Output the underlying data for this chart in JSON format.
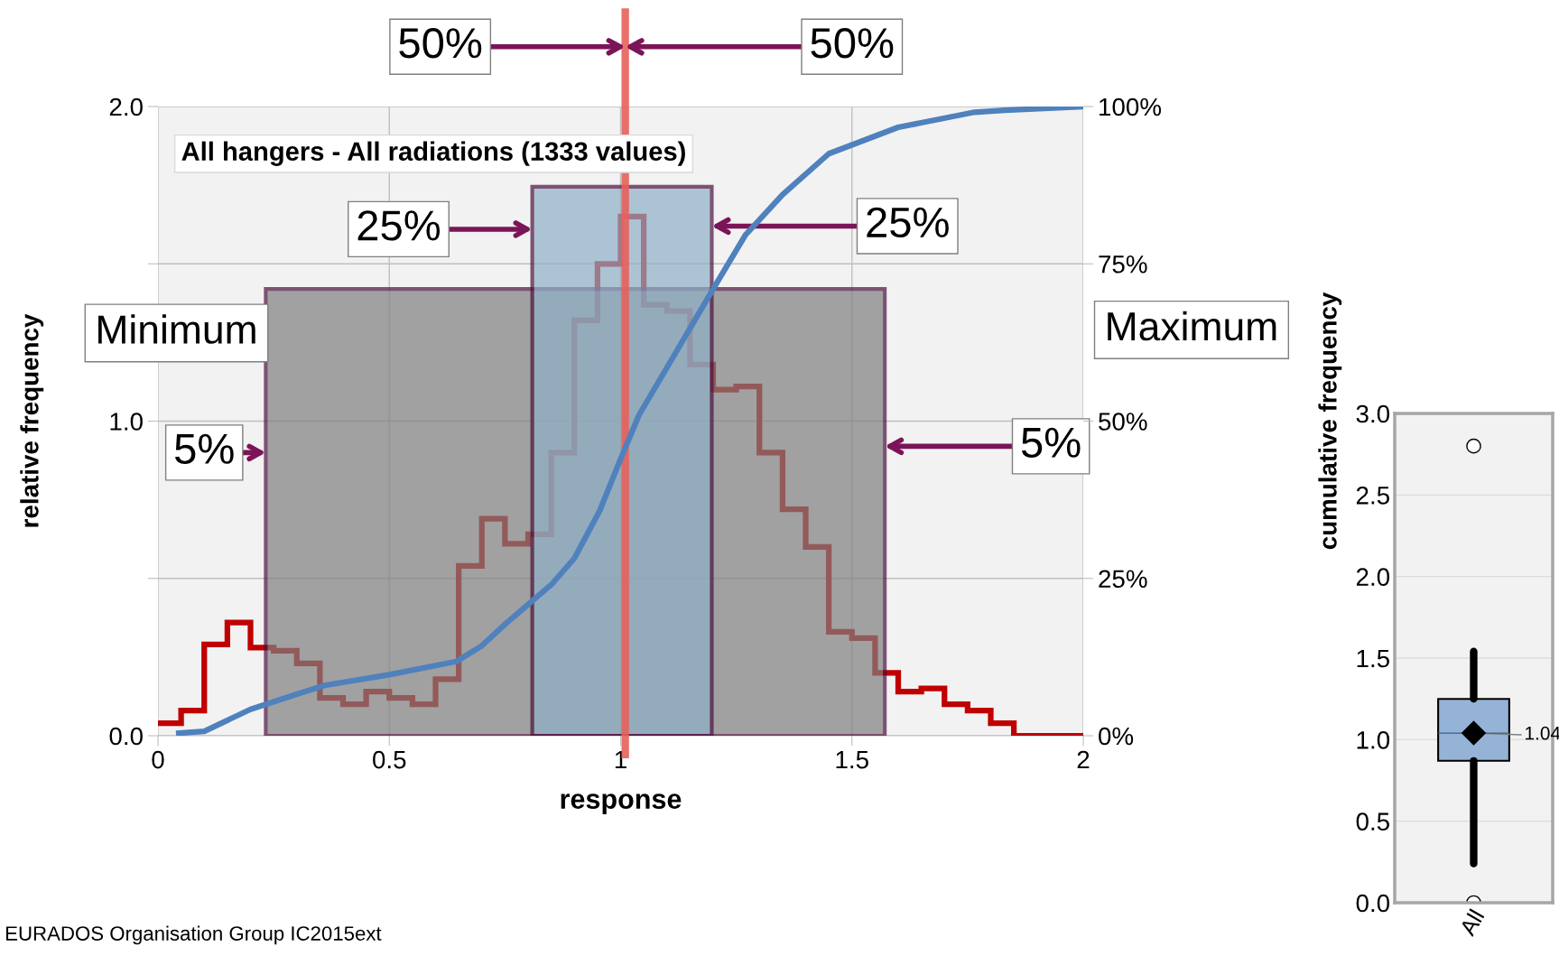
{
  "chart_data": [
    {
      "type": "histogram",
      "title": "All hangers - All radiations (1333 values)",
      "xlabel": "response",
      "ylabel": "relative frequency",
      "y2label": "cumulative frequency",
      "series": [
        {
          "type": "histogram",
          "color": "#c00000",
          "bins": [
            0,
            0.05,
            0.1,
            0.15,
            0.2,
            0.25,
            0.3,
            0.35,
            0.4,
            0.45,
            0.5,
            0.55,
            0.6,
            0.65,
            0.7,
            0.75,
            0.8,
            0.85,
            0.9,
            0.95,
            1.0,
            1.05,
            1.1,
            1.15,
            1.2,
            1.25,
            1.3,
            1.35,
            1.4,
            1.45,
            1.5,
            1.55,
            1.6,
            1.65,
            1.7,
            1.75,
            1.8,
            1.85,
            1.9,
            1.95,
            2.0
          ],
          "values": [
            0.04,
            0.08,
            0.29,
            0.36,
            0.28,
            0.27,
            0.23,
            0.12,
            0.1,
            0.14,
            0.12,
            0.1,
            0.18,
            0.54,
            0.69,
            0.61,
            0.64,
            0.9,
            1.32,
            1.5,
            1.65,
            1.37,
            1.35,
            1.18,
            1.1,
            1.11,
            0.9,
            0.72,
            0.6,
            0.33,
            0.31,
            0.2,
            0.14,
            0.15,
            0.1,
            0.08,
            0.04,
            0,
            0,
            0
          ]
        },
        {
          "type": "line",
          "axis": "y2",
          "color": "#4f81bd",
          "x": [
            0.045,
            0.1,
            0.2,
            0.3,
            0.36,
            0.5,
            0.645,
            0.7,
            0.75,
            0.85,
            0.9,
            0.955,
            1.0,
            1.04,
            1.2,
            1.27,
            1.35,
            1.45,
            1.6,
            1.765,
            1.83,
            2.0
          ],
          "values": [
            0.4,
            0.7,
            4.2,
            6.6,
            8,
            9.7,
            11.8,
            14.3,
            17.7,
            24,
            28.2,
            35.8,
            44,
            51,
            71,
            79.6,
            86,
            92.5,
            96.7,
            99.1,
            99.4,
            100
          ]
        }
      ],
      "xlim": [
        0,
        2
      ],
      "xticks": [
        0,
        0.5,
        1,
        1.5,
        2
      ],
      "ylim": [
        0,
        2
      ],
      "yticks": [
        {
          "value": 0,
          "label": "0.0"
        },
        {
          "value": 0.5,
          "label": null
        },
        {
          "value": 1,
          "label": "1.0"
        },
        {
          "value": 1.5,
          "label": null
        },
        {
          "value": 2,
          "label": "2.0"
        }
      ],
      "y2lim": [
        0,
        100
      ],
      "y2ticks": [
        {
          "value": 0,
          "label": "0%"
        },
        {
          "value": 25,
          "label": "25%"
        },
        {
          "value": 50,
          "label": "50%"
        },
        {
          "value": 75,
          "label": "75%"
        },
        {
          "value": 100,
          "label": "100%"
        }
      ],
      "grid": true,
      "ref_lines": [
        {
          "axis": "x",
          "value": 1.01,
          "color": "#e8605a"
        }
      ],
      "bands": [
        {
          "axis": "x",
          "from": 0.233,
          "to": 1.571,
          "color": "#808080"
        },
        {
          "axis": "x",
          "from": 0.809,
          "to": 1.197,
          "color": "#8fb0c8"
        }
      ],
      "annotations": [
        "50%",
        "50%",
        "25%",
        "25%",
        "5%",
        "5%",
        "Minimum",
        "Maximum",
        "EURADOS Organisation Group IC2015ext"
      ]
    },
    {
      "type": "box",
      "categories": [
        "All"
      ],
      "boxes": [
        {
          "low": 0.24,
          "q1": 0.87,
          "median": 1.04,
          "q3": 1.25,
          "high": 1.54,
          "mean": 1.04,
          "outliers": [
            2.8,
            0
          ]
        }
      ],
      "color": "#95b3d7",
      "value_labels": [
        "1.04"
      ],
      "ylim": [
        0,
        3
      ],
      "yticks": [
        {
          "value": 0,
          "label": "0.0"
        },
        {
          "value": 0.5,
          "label": "0.5"
        },
        {
          "value": 1,
          "label": "1.0"
        },
        {
          "value": 1.5,
          "label": "1.5"
        },
        {
          "value": 2,
          "label": "2.0"
        },
        {
          "value": 2.5,
          "label": "2.5"
        },
        {
          "value": 3,
          "label": "3.0"
        }
      ],
      "grid": "y"
    }
  ]
}
